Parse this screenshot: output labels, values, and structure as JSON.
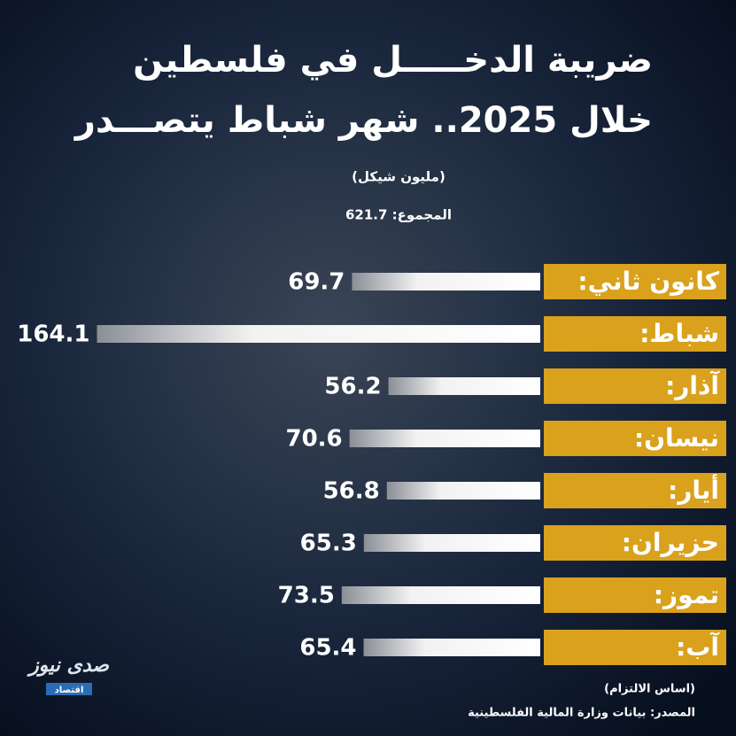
{
  "chart_data": {
    "type": "hbar",
    "title": [
      "ضريبة الدخـــــل في فلسطين",
      "خلال 2025.. شهر شباط يتصـــدر"
    ],
    "subtitle": "(مليون شيكل)",
    "annotation": "المجموع: 621.7",
    "categories": [
      "كانون ثاني:",
      "شباط:",
      "آذار:",
      "نيسان:",
      "أيار:",
      "حزيران:",
      "تموز:",
      "آب:"
    ],
    "values": [
      69.7,
      164.1,
      56.2,
      70.6,
      56.8,
      65.3,
      73.5,
      65.4
    ],
    "color": "#ffffff",
    "label_color": "#d9a11c",
    "note": "(اساس الالتزام)",
    "source": "المصدر: بيانات وزارة المالية الفلسطينية",
    "brand": "صدى نيوز",
    "brand_sub": "اقتصاد"
  }
}
